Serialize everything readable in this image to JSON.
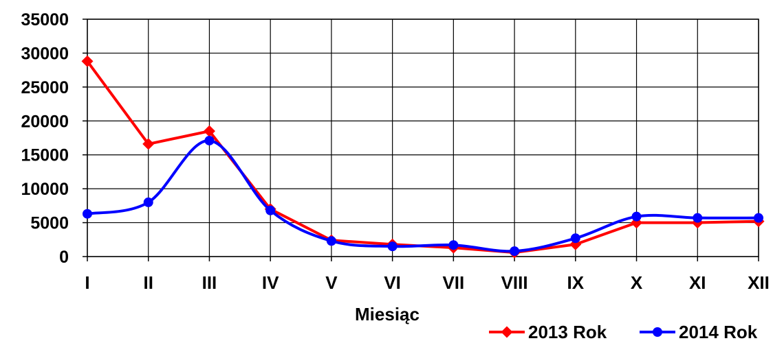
{
  "chart_data": {
    "type": "line",
    "title": "",
    "xlabel": "Miesiąc",
    "ylabel": "",
    "categories": [
      "I",
      "II",
      "III",
      "IV",
      "V",
      "VI",
      "VII",
      "VIII",
      "IX",
      "X",
      "XI",
      "XII"
    ],
    "yticks": [
      "0",
      "5000",
      "10000",
      "15000",
      "20000",
      "25000",
      "30000",
      "35000"
    ],
    "ylim": [
      0,
      35000
    ],
    "grid": true,
    "legend_position": "bottom-right",
    "series": [
      {
        "name": "2013 Rok",
        "color": "#ff0000",
        "marker": "diamond",
        "smooth": false,
        "values": [
          28800,
          16600,
          18500,
          7000,
          2400,
          1800,
          1300,
          600,
          1800,
          5000,
          5000,
          5200
        ]
      },
      {
        "name": "2014 Rok",
        "color": "#0000ff",
        "marker": "circle",
        "smooth": true,
        "values": [
          6300,
          8000,
          17100,
          6800,
          2300,
          1500,
          1700,
          800,
          2700,
          5900,
          5700,
          5700
        ]
      }
    ]
  }
}
